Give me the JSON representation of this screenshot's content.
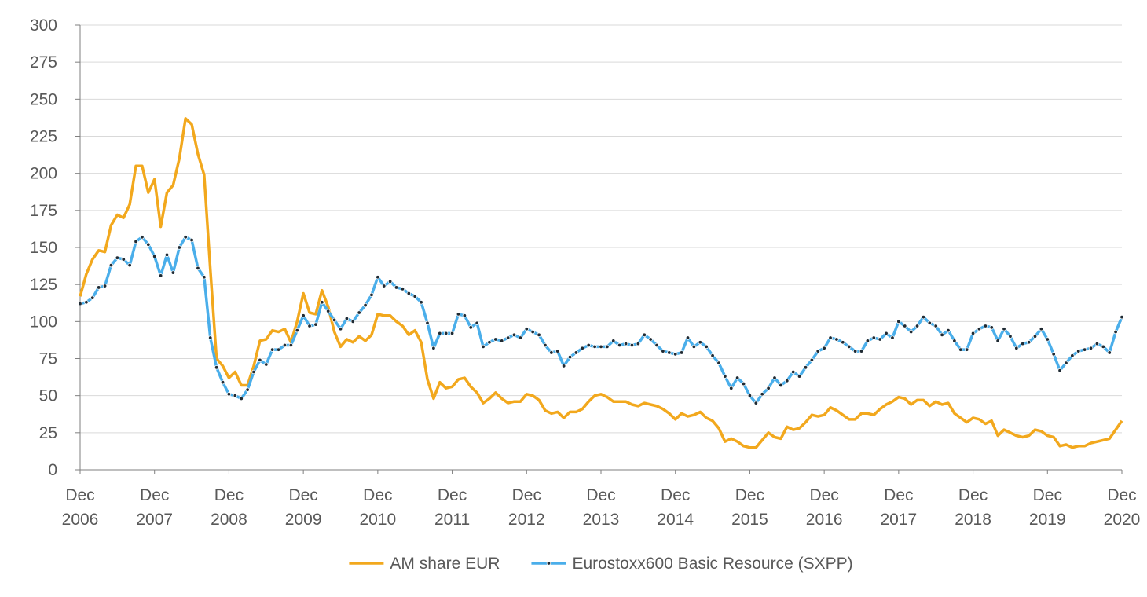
{
  "chart_data": {
    "type": "line",
    "categories": [
      "Dec 2006",
      null,
      null,
      null,
      null,
      null,
      null,
      null,
      null,
      null,
      null,
      null,
      "Dec 2007",
      null,
      null,
      null,
      null,
      null,
      null,
      null,
      null,
      null,
      null,
      null,
      "Dec 2008",
      null,
      null,
      null,
      null,
      null,
      null,
      null,
      null,
      null,
      null,
      null,
      "Dec 2009",
      null,
      null,
      null,
      null,
      null,
      null,
      null,
      null,
      null,
      null,
      null,
      "Dec 2010",
      null,
      null,
      null,
      null,
      null,
      null,
      null,
      null,
      null,
      null,
      null,
      "Dec 2011",
      null,
      null,
      null,
      null,
      null,
      null,
      null,
      null,
      null,
      null,
      null,
      "Dec 2012",
      null,
      null,
      null,
      null,
      null,
      null,
      null,
      null,
      null,
      null,
      null,
      "Dec 2013",
      null,
      null,
      null,
      null,
      null,
      null,
      null,
      null,
      null,
      null,
      null,
      "Dec 2014",
      null,
      null,
      null,
      null,
      null,
      null,
      null,
      null,
      null,
      null,
      null,
      "Dec 2015",
      null,
      null,
      null,
      null,
      null,
      null,
      null,
      null,
      null,
      null,
      null,
      "Dec 2016",
      null,
      null,
      null,
      null,
      null,
      null,
      null,
      null,
      null,
      null,
      null,
      "Dec 2017",
      null,
      null,
      null,
      null,
      null,
      null,
      null,
      null,
      null,
      null,
      null,
      "Dec 2018",
      null,
      null,
      null,
      null,
      null,
      null,
      null,
      null,
      null,
      null,
      null,
      "Dec 2019",
      null,
      null,
      null,
      null,
      null,
      null,
      null,
      null,
      null,
      null,
      null,
      "Dec 2020"
    ],
    "series": [
      {
        "name": "AM share EUR",
        "color": "#f2a81d",
        "marker": false,
        "values": [
          117,
          132,
          142,
          148,
          147,
          165,
          172,
          170,
          179,
          205,
          205,
          187,
          196,
          164,
          187,
          192,
          210,
          237,
          233,
          213,
          199,
          135,
          75,
          70,
          62,
          66,
          57,
          57,
          70,
          87,
          88,
          94,
          93,
          95,
          86,
          100,
          119,
          106,
          105,
          121,
          110,
          93,
          83,
          88,
          86,
          90,
          87,
          91,
          105,
          104,
          104,
          100,
          97,
          91,
          94,
          86,
          61,
          48,
          59,
          55,
          56,
          61,
          62,
          56,
          52,
          45,
          48,
          52,
          48,
          45,
          46,
          46,
          51,
          50,
          47,
          40,
          38,
          39,
          35,
          39,
          39,
          41,
          46,
          50,
          51,
          49,
          46,
          46,
          46,
          44,
          43,
          45,
          44,
          43,
          41,
          38,
          34,
          38,
          36,
          37,
          39,
          35,
          33,
          28,
          19,
          21,
          19,
          16,
          15,
          15,
          20,
          25,
          22,
          21,
          29,
          27,
          28,
          32,
          37,
          36,
          37,
          42,
          40,
          37,
          34,
          34,
          38,
          38,
          37,
          41,
          44,
          46,
          49,
          48,
          44,
          47,
          47,
          43,
          46,
          44,
          45,
          38,
          35,
          32,
          35,
          34,
          31,
          33,
          23,
          27,
          25,
          23,
          22,
          23,
          27,
          26,
          23,
          22,
          16,
          17,
          15,
          16,
          16,
          18,
          19,
          20,
          21,
          27,
          33
        ]
      },
      {
        "name": "Eurostoxx600 Basic Resource (SXPP)",
        "color": "#4aaeea",
        "marker": true,
        "values": [
          112,
          113,
          116,
          123,
          124,
          138,
          143,
          142,
          138,
          154,
          157,
          152,
          144,
          131,
          145,
          133,
          150,
          157,
          155,
          136,
          130,
          89,
          69,
          59,
          51,
          50,
          48,
          54,
          66,
          74,
          71,
          81,
          81,
          84,
          84,
          94,
          104,
          97,
          98,
          113,
          107,
          101,
          95,
          102,
          100,
          106,
          111,
          118,
          130,
          124,
          127,
          123,
          122,
          119,
          117,
          113,
          99,
          82,
          92,
          92,
          92,
          105,
          104,
          96,
          99,
          83,
          86,
          88,
          87,
          89,
          91,
          89,
          95,
          93,
          91,
          84,
          79,
          80,
          70,
          76,
          79,
          82,
          84,
          83,
          83,
          83,
          87,
          84,
          85,
          84,
          85,
          91,
          88,
          84,
          80,
          79,
          78,
          79,
          89,
          83,
          86,
          83,
          77,
          72,
          63,
          55,
          62,
          58,
          50,
          45,
          51,
          55,
          62,
          57,
          60,
          66,
          63,
          69,
          74,
          80,
          82,
          89,
          88,
          86,
          83,
          80,
          80,
          87,
          89,
          88,
          92,
          89,
          100,
          97,
          93,
          97,
          103,
          99,
          97,
          91,
          94,
          87,
          81,
          81,
          92,
          95,
          97,
          96,
          87,
          95,
          90,
          82,
          85,
          86,
          90,
          95,
          88,
          78,
          67,
          72,
          77,
          80,
          81,
          82,
          85,
          83,
          79,
          93,
          103
        ]
      }
    ],
    "ylim": [
      0,
      300
    ],
    "yticks": [
      0,
      25,
      50,
      75,
      100,
      125,
      150,
      175,
      200,
      225,
      250,
      275,
      300
    ],
    "grid": true,
    "legend": "bottom"
  }
}
